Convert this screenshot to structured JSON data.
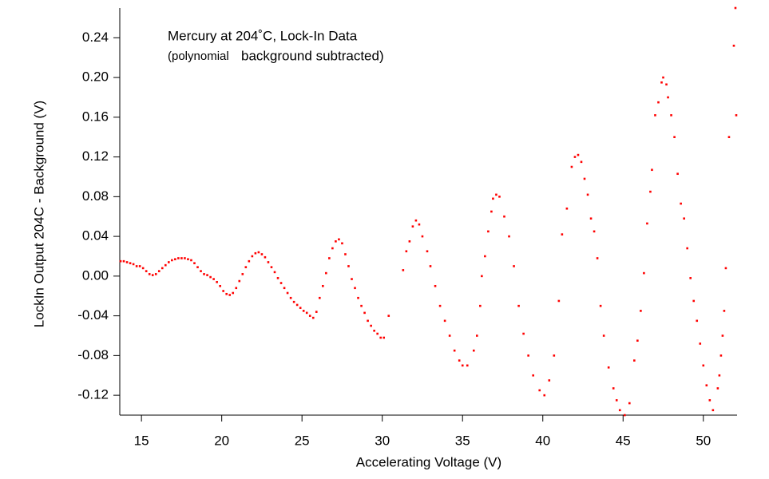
{
  "chart_data": {
    "type": "scatter",
    "annotations": [
      "Mercury at 204˚C, Lock-In Data",
      "(polynomial",
      "background subtracted)"
    ],
    "x_label": "Accelerating Voltage (V)",
    "y_label": "LockIn Output 204C - Background (V)",
    "color": "#ff0000",
    "xlim": [
      13.65,
      52.1
    ],
    "ylim": [
      -0.14,
      0.27
    ],
    "xticks": [
      15,
      20,
      25,
      30,
      35,
      40,
      45,
      50
    ],
    "yticks": [
      -0.12,
      -0.08,
      -0.04,
      {
        "value": 0,
        "label": "0.00"
      },
      0.04,
      0.08,
      0.12,
      0.16,
      {
        "value": 0.2,
        "label": "0.20"
      },
      0.24
    ],
    "x": [
      13.7,
      13.9,
      14.1,
      14.3,
      14.5,
      14.7,
      14.9,
      15.1,
      15.3,
      15.5,
      15.7,
      15.9,
      16.1,
      16.3,
      16.5,
      16.7,
      16.9,
      17.1,
      17.3,
      17.5,
      17.7,
      17.9,
      18.1,
      18.3,
      18.5,
      18.7,
      18.9,
      19.1,
      19.3,
      19.5,
      19.7,
      19.9,
      20.1,
      20.3,
      20.5,
      20.7,
      20.9,
      21.1,
      21.3,
      21.5,
      21.7,
      21.9,
      22.1,
      22.3,
      22.5,
      22.7,
      22.9,
      23.1,
      23.3,
      23.5,
      23.7,
      23.9,
      24.1,
      24.3,
      24.5,
      24.7,
      24.9,
      25.1,
      25.3,
      25.5,
      25.7,
      25.9,
      26.1,
      26.3,
      26.5,
      26.7,
      26.9,
      27.1,
      27.3,
      27.5,
      27.7,
      27.9,
      28.1,
      28.3,
      28.5,
      28.7,
      28.9,
      29.1,
      29.3,
      29.5,
      29.7,
      29.9,
      30.1,
      30.4,
      31.3,
      31.5,
      31.7,
      31.9,
      32.1,
      32.3,
      32.5,
      32.8,
      33.0,
      33.3,
      33.6,
      33.9,
      34.2,
      34.5,
      34.8,
      35.0,
      35.3,
      35.7,
      35.9,
      36.1,
      36.2,
      36.4,
      36.6,
      36.8,
      36.9,
      37.1,
      37.3,
      37.6,
      37.9,
      38.2,
      38.5,
      38.8,
      39.1,
      39.4,
      39.8,
      40.1,
      40.4,
      40.7,
      41.0,
      41.2,
      41.5,
      41.8,
      42.0,
      42.2,
      42.4,
      42.6,
      42.8,
      43.0,
      43.2,
      43.4,
      43.6,
      43.8,
      44.1,
      44.4,
      44.6,
      44.8,
      45.1,
      45.4,
      45.7,
      45.9,
      46.1,
      46.3,
      46.5,
      46.7,
      46.8,
      47.0,
      47.2,
      47.4,
      47.5,
      47.7,
      47.8,
      48.0,
      48.2,
      48.4,
      48.6,
      48.8,
      49.0,
      49.2,
      49.4,
      49.6,
      49.8,
      50.0,
      50.2,
      50.4,
      50.6,
      50.9,
      51.0,
      51.1,
      51.2,
      51.3,
      51.4,
      51.6,
      51.9,
      52.0,
      52.05
    ],
    "values": [
      0.015,
      0.015,
      0.014,
      0.013,
      0.012,
      0.01,
      0.01,
      0.008,
      0.005,
      0.002,
      0.001,
      0.002,
      0.005,
      0.008,
      0.011,
      0.014,
      0.016,
      0.017,
      0.018,
      0.018,
      0.018,
      0.017,
      0.016,
      0.013,
      0.009,
      0.005,
      0.002,
      0.001,
      -0.001,
      -0.003,
      -0.006,
      -0.01,
      -0.015,
      -0.018,
      -0.019,
      -0.017,
      -0.012,
      -0.005,
      0.002,
      0.009,
      0.015,
      0.02,
      0.023,
      0.024,
      0.022,
      0.019,
      0.014,
      0.009,
      0.004,
      -0.002,
      -0.007,
      -0.012,
      -0.017,
      -0.022,
      -0.026,
      -0.029,
      -0.032,
      -0.035,
      -0.037,
      -0.04,
      -0.042,
      -0.036,
      -0.022,
      -0.01,
      0.003,
      0.018,
      0.028,
      0.035,
      0.037,
      0.033,
      0.022,
      0.01,
      -0.003,
      -0.012,
      -0.022,
      -0.03,
      -0.037,
      -0.045,
      -0.05,
      -0.055,
      -0.058,
      -0.062,
      -0.062,
      -0.04,
      0.006,
      0.025,
      0.035,
      0.05,
      0.056,
      0.052,
      0.04,
      0.025,
      0.01,
      -0.01,
      -0.03,
      -0.045,
      -0.06,
      -0.075,
      -0.085,
      -0.09,
      -0.09,
      -0.075,
      -0.06,
      -0.03,
      0.0,
      0.02,
      0.045,
      0.065,
      0.078,
      0.082,
      0.08,
      0.06,
      0.04,
      0.01,
      -0.03,
      -0.058,
      -0.08,
      -0.1,
      -0.115,
      -0.12,
      -0.105,
      -0.08,
      -0.025,
      0.042,
      0.068,
      0.11,
      0.12,
      0.122,
      0.115,
      0.098,
      0.082,
      0.058,
      0.045,
      0.018,
      -0.03,
      -0.06,
      -0.092,
      -0.113,
      -0.125,
      -0.135,
      -0.14,
      -0.128,
      -0.085,
      -0.065,
      -0.035,
      0.003,
      0.053,
      0.085,
      0.107,
      0.162,
      0.175,
      0.195,
      0.2,
      0.193,
      0.18,
      0.162,
      0.14,
      0.103,
      0.073,
      0.058,
      0.028,
      -0.002,
      -0.025,
      -0.045,
      -0.068,
      -0.09,
      -0.11,
      -0.125,
      -0.135,
      -0.113,
      -0.1,
      -0.08,
      -0.06,
      -0.035,
      0.008,
      0.14,
      0.232,
      0.27,
      0.162
    ]
  }
}
